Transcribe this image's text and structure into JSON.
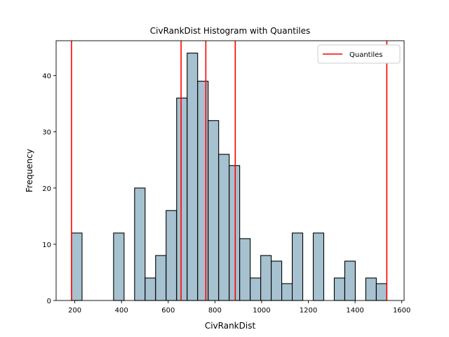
{
  "chart_data": {
    "type": "bar",
    "title": "CivRankDist Histogram with Quantiles",
    "xlabel": "CivRankDist",
    "ylabel": "Frequency",
    "xlim": [
      120,
      1610
    ],
    "ylim": [
      0,
      46.2
    ],
    "xticks": [
      200,
      400,
      600,
      800,
      1000,
      1200,
      1400,
      1600
    ],
    "yticks": [
      0,
      10,
      20,
      30,
      40
    ],
    "bins": [
      {
        "x0": 186,
        "x1": 231,
        "count": 12
      },
      {
        "x0": 231,
        "x1": 276,
        "count": 0
      },
      {
        "x0": 276,
        "x1": 321,
        "count": 0
      },
      {
        "x0": 321,
        "x1": 366,
        "count": 0
      },
      {
        "x0": 366,
        "x1": 411,
        "count": 12
      },
      {
        "x0": 411,
        "x1": 456,
        "count": 0
      },
      {
        "x0": 456,
        "x1": 501,
        "count": 20
      },
      {
        "x0": 501,
        "x1": 546,
        "count": 4
      },
      {
        "x0": 546,
        "x1": 591,
        "count": 8
      },
      {
        "x0": 591,
        "x1": 636,
        "count": 16
      },
      {
        "x0": 636,
        "x1": 681,
        "count": 36
      },
      {
        "x0": 681,
        "x1": 726,
        "count": 44
      },
      {
        "x0": 726,
        "x1": 771,
        "count": 39
      },
      {
        "x0": 771,
        "x1": 816,
        "count": 32
      },
      {
        "x0": 816,
        "x1": 861,
        "count": 26
      },
      {
        "x0": 861,
        "x1": 906,
        "count": 24
      },
      {
        "x0": 906,
        "x1": 951,
        "count": 11
      },
      {
        "x0": 951,
        "x1": 996,
        "count": 4
      },
      {
        "x0": 996,
        "x1": 1041,
        "count": 8
      },
      {
        "x0": 1041,
        "x1": 1086,
        "count": 7
      },
      {
        "x0": 1086,
        "x1": 1131,
        "count": 3
      },
      {
        "x0": 1131,
        "x1": 1176,
        "count": 12
      },
      {
        "x0": 1176,
        "x1": 1221,
        "count": 0
      },
      {
        "x0": 1221,
        "x1": 1266,
        "count": 12
      },
      {
        "x0": 1266,
        "x1": 1311,
        "count": 0
      },
      {
        "x0": 1311,
        "x1": 1356,
        "count": 4
      },
      {
        "x0": 1356,
        "x1": 1401,
        "count": 7
      },
      {
        "x0": 1401,
        "x1": 1446,
        "count": 0
      },
      {
        "x0": 1446,
        "x1": 1491,
        "count": 4
      },
      {
        "x0": 1491,
        "x1": 1536,
        "count": 3
      }
    ],
    "quantiles": [
      186,
      655,
      761,
      887,
      1536
    ],
    "legend": {
      "label": "Quantiles",
      "position": "top-right"
    },
    "grid": false,
    "colors": {
      "bar_fill": "#a6c1cf",
      "bar_edge": "#000000",
      "quantile_line": "#ff0000"
    }
  }
}
